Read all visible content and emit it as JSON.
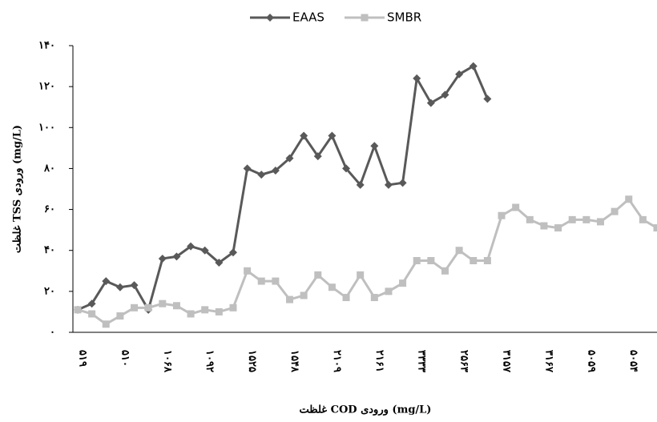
{
  "chart_data": {
    "type": "line",
    "y_label": "غلظت TSS ورودی (mg/L)",
    "x_label": "غلظت COD ورودی (mg/L)",
    "categories": [
      "۵۱۹",
      null,
      null,
      "۵۱۰",
      null,
      null,
      "۱۰۶۸",
      null,
      null,
      "۱۰۹۲",
      null,
      null,
      "۱۵۲۵",
      null,
      null,
      "۱۵۴۸",
      null,
      null,
      "۲۱۰۹",
      null,
      null,
      "۲۱۶۱",
      null,
      null,
      "۳۳۳۳",
      null,
      null,
      "۲۵۶۳",
      null,
      null,
      "۳۱۵۷",
      null,
      null,
      "۳۱۶۷",
      null,
      null,
      "۵۰۵۹",
      null,
      null,
      "۵۰۵۴",
      null,
      null
    ],
    "series": [
      {
        "name": "EAAS",
        "color": "#595959",
        "marker": "diamond",
        "values": [
          11,
          14,
          25,
          22,
          23,
          11,
          36,
          37,
          42,
          40,
          34,
          39,
          80,
          77,
          79,
          85,
          96,
          86,
          96,
          80,
          72,
          91,
          72,
          73,
          124,
          112,
          116,
          126,
          130,
          114,
          null,
          null,
          null,
          null,
          null,
          null,
          null,
          null,
          null,
          null,
          null,
          null
        ]
      },
      {
        "name": "SMBR",
        "color": "#bfbfbf",
        "marker": "square",
        "values": [
          11,
          9,
          4,
          8,
          12,
          12,
          14,
          13,
          9,
          11,
          10,
          12,
          30,
          25,
          25,
          16,
          18,
          28,
          22,
          17,
          28,
          17,
          20,
          24,
          35,
          35,
          30,
          40,
          35,
          35,
          57,
          61,
          55,
          52,
          51,
          55,
          55,
          54,
          59,
          65,
          55,
          51
        ]
      }
    ],
    "ylim": [
      0,
      140
    ],
    "yticks": [
      {
        "value": 0,
        "label": "۰"
      },
      {
        "value": 20,
        "label": "۲۰"
      },
      {
        "value": 40,
        "label": "۴۰"
      },
      {
        "value": 60,
        "label": "۶۰"
      },
      {
        "value": 80,
        "label": "۸۰"
      },
      {
        "value": 100,
        "label": "۱۰۰"
      },
      {
        "value": 120,
        "label": "۱۲۰"
      },
      {
        "value": 140,
        "label": "۱۴۰"
      }
    ],
    "grid": false,
    "legend": "top"
  }
}
